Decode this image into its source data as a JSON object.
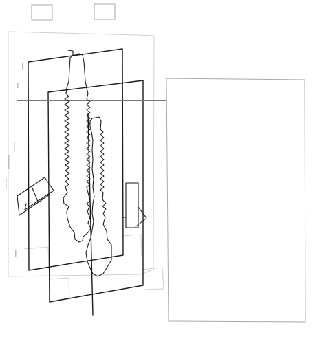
{
  "canvas": {
    "background": "#ffffff",
    "ink_color": "#1a1a1a",
    "faint_color": "#cfcfcf",
    "guide_color": "#a9a9a9"
  },
  "toolbar": {
    "items": [
      {
        "name": "toolbar-box-left",
        "label": ""
      },
      {
        "name": "toolbar-box-right",
        "label": ""
      }
    ]
  },
  "drawing": {
    "layers": [
      "faint-outer-frame",
      "rear-plate",
      "front-plate",
      "horizontal-guide-line",
      "right-empty-panel",
      "serrated-probe-left",
      "serrated-probe-right",
      "vertical-shaft",
      "left-ladder-fixture",
      "right-clip-fixture"
    ]
  }
}
